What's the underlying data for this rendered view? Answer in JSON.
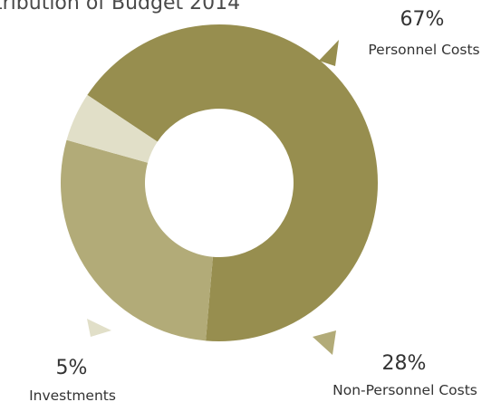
{
  "chart_data": {
    "type": "pie",
    "title": "tribution of Budget 2014",
    "donut": true,
    "series": [
      {
        "label": "Personnel Costs",
        "value": 67,
        "percent_label": "67%",
        "color": "#978e4f"
      },
      {
        "label": "Non-Personnel Costs",
        "value": 28,
        "percent_label": "28%",
        "color": "#b2ab78"
      },
      {
        "label": "Investments",
        "value": 5,
        "percent_label": "5%",
        "color": "#e1dfc8"
      }
    ]
  }
}
